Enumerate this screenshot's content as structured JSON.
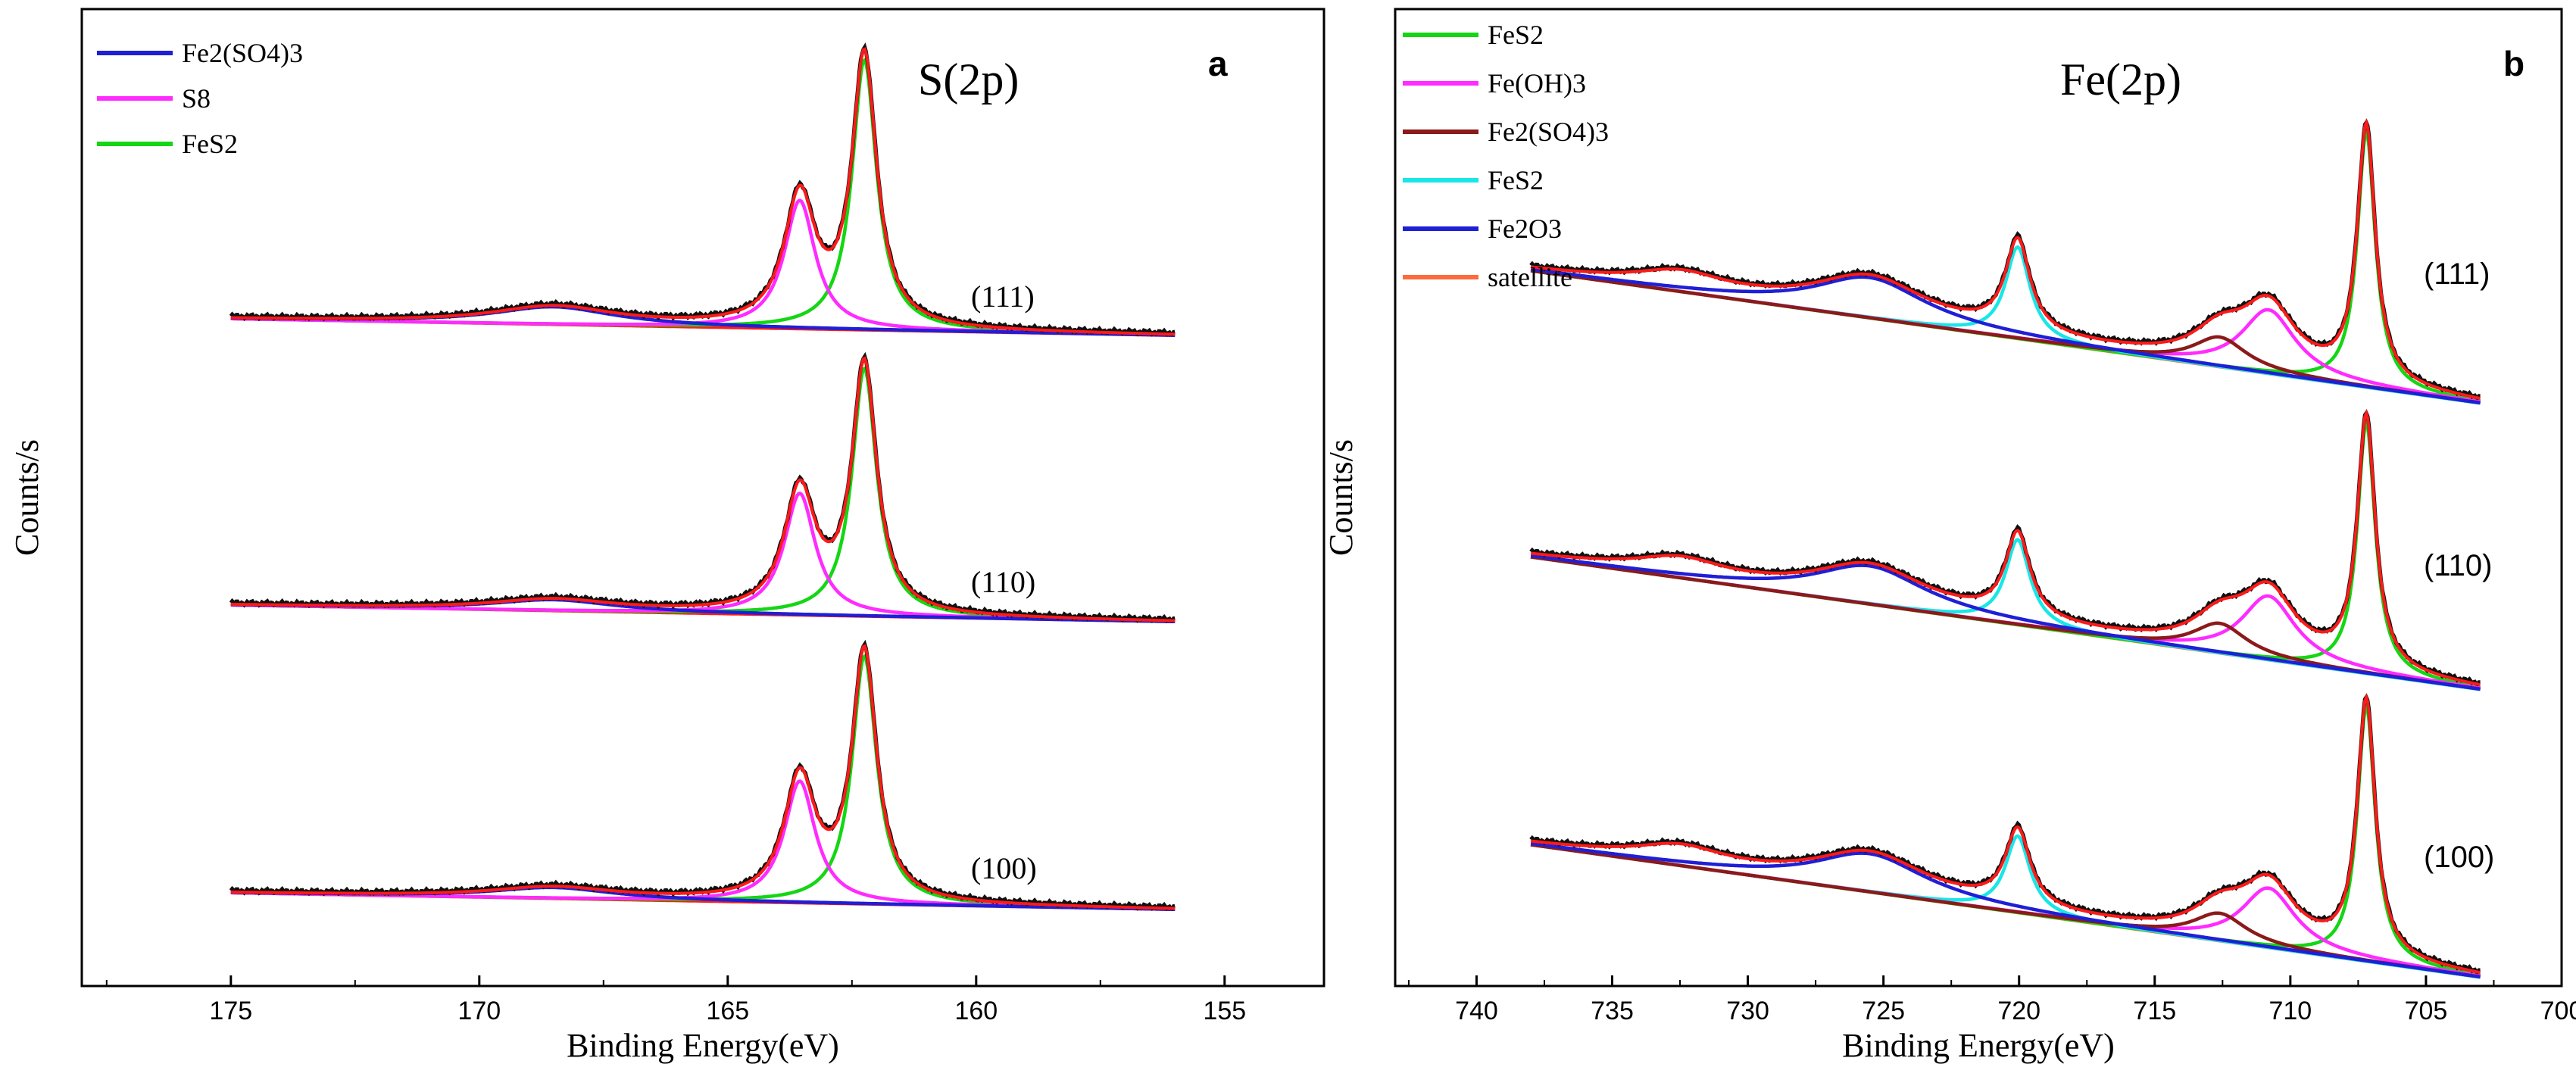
{
  "chart_data": [
    {
      "type": "line",
      "panel_label": "a",
      "title": "S(2p)",
      "xlabel": "Binding Energy(eV)",
      "ylabel": "Counts/s",
      "xlim": [
        178,
        153
      ],
      "x_reversed": true,
      "x_ticks": [
        "175",
        "170",
        "165",
        "160",
        "155"
      ],
      "x_tick_values": [
        175,
        170,
        165,
        160,
        155
      ],
      "grid": false,
      "legend_position": "top-left",
      "legend": [
        {
          "name": "Fe2(SO4)3",
          "color": "#1f1fd6"
        },
        {
          "name": "S8",
          "color": "#ff2bff"
        },
        {
          "name": "FeS2",
          "color": "#14d614"
        }
      ],
      "envelope_color": "#ff1a1a",
      "raw_color": "#111111",
      "baseline_color": "#ff1a1a",
      "x_range_data": [
        175,
        156
      ],
      "spectra": [
        {
          "label": "(111)",
          "offset": 2.0,
          "components": [
            {
              "name": "FeS2",
              "peaks": [
                {
                  "center": 162.25,
                  "height": 1.22,
                  "width": 0.3
                }
              ]
            },
            {
              "name": "S8",
              "peaks": [
                {
                  "center": 163.55,
                  "height": 0.58,
                  "width": 0.38
                }
              ]
            },
            {
              "name": "Fe2(SO4)3",
              "peaks": [
                {
                  "center": 168.5,
                  "height": 0.08,
                  "width": 1.5
                }
              ]
            }
          ]
        },
        {
          "label": "(110)",
          "offset": 1.0,
          "components": [
            {
              "name": "FeS2",
              "peaks": [
                {
                  "center": 162.25,
                  "height": 1.12,
                  "width": 0.3
                }
              ]
            },
            {
              "name": "S8",
              "peaks": [
                {
                  "center": 163.55,
                  "height": 0.55,
                  "width": 0.38
                }
              ]
            },
            {
              "name": "Fe2(SO4)3",
              "peaks": [
                {
                  "center": 168.5,
                  "height": 0.05,
                  "width": 1.5
                }
              ]
            }
          ]
        },
        {
          "label": "(100)",
          "offset": 0.0,
          "components": [
            {
              "name": "FeS2",
              "peaks": [
                {
                  "center": 162.25,
                  "height": 1.12,
                  "width": 0.3
                }
              ]
            },
            {
              "name": "S8",
              "peaks": [
                {
                  "center": 163.55,
                  "height": 0.55,
                  "width": 0.38
                }
              ]
            },
            {
              "name": "Fe2(SO4)3",
              "peaks": [
                {
                  "center": 168.5,
                  "height": 0.05,
                  "width": 1.5
                }
              ]
            }
          ]
        }
      ]
    },
    {
      "type": "line",
      "panel_label": "b",
      "title": "Fe(2p)",
      "xlabel": "Binding Energy(eV)",
      "ylabel": "Counts/s",
      "xlim": [
        743,
        700
      ],
      "x_reversed": true,
      "x_ticks": [
        "740",
        "735",
        "730",
        "725",
        "720",
        "715",
        "710",
        "705",
        "700"
      ],
      "x_tick_values": [
        740,
        735,
        730,
        725,
        720,
        715,
        710,
        705,
        700
      ],
      "grid": false,
      "legend_position": "top-left",
      "legend": [
        {
          "name": "FeS2",
          "color": "#14d614"
        },
        {
          "name": "Fe(OH)3",
          "color": "#ff2bff"
        },
        {
          "name": "Fe2(SO4)3",
          "color": "#8b1a1a"
        },
        {
          "name": "FeS2",
          "color": "#19e6e6"
        },
        {
          "name": "Fe2O3",
          "color": "#1f1fd6"
        },
        {
          "name": "satellite",
          "color": "#ff6a3a"
        }
      ],
      "envelope_color": "#ff1a1a",
      "raw_color": "#111111",
      "x_range_data": [
        738,
        703
      ],
      "spectra": [
        {
          "label": "(111)",
          "offset": 2.0,
          "components": [
            {
              "name": "FeS2",
              "peaks": [
                {
                  "center": 707.2,
                  "height": 1.2,
                  "width": 0.4
                }
              ]
            },
            {
              "name": "FeS2 (2p1/2)",
              "peaks": [
                {
                  "center": 720.05,
                  "height": 0.43,
                  "width": 0.55
                }
              ]
            },
            {
              "name": "Fe(OH)3",
              "peaks": [
                {
                  "center": 710.8,
                  "height": 0.3,
                  "width": 1.2
                }
              ]
            },
            {
              "name": "Fe2(SO4)3",
              "peaks": [
                {
                  "center": 712.6,
                  "height": 0.14,
                  "width": 1.2
                }
              ]
            },
            {
              "name": "Fe2O3",
              "peaks": [
                {
                  "center": 725.5,
                  "height": 0.19,
                  "width": 2.5
                }
              ]
            },
            {
              "name": "satellite",
              "peaks": [
                {
                  "center": 732.5,
                  "height": 0.08,
                  "width": 2.0
                }
              ]
            }
          ]
        },
        {
          "label": "(110)",
          "offset": 1.0,
          "components": [
            {
              "name": "FeS2",
              "peaks": [
                {
                  "center": 707.2,
                  "height": 1.18,
                  "width": 0.4
                }
              ]
            },
            {
              "name": "FeS2 (2p1/2)",
              "peaks": [
                {
                  "center": 720.05,
                  "height": 0.4,
                  "width": 0.55
                }
              ]
            },
            {
              "name": "Fe(OH)3",
              "peaks": [
                {
                  "center": 710.8,
                  "height": 0.3,
                  "width": 1.2
                }
              ]
            },
            {
              "name": "Fe2(SO4)3",
              "peaks": [
                {
                  "center": 712.6,
                  "height": 0.14,
                  "width": 1.2
                }
              ]
            },
            {
              "name": "Fe2O3",
              "peaks": [
                {
                  "center": 725.5,
                  "height": 0.18,
                  "width": 2.5
                }
              ]
            },
            {
              "name": "satellite",
              "peaks": [
                {
                  "center": 732.5,
                  "height": 0.08,
                  "width": 2.0
                }
              ]
            }
          ]
        },
        {
          "label": "(100)",
          "offset": 0.0,
          "components": [
            {
              "name": "FeS2",
              "peaks": [
                {
                  "center": 707.2,
                  "height": 1.2,
                  "width": 0.4
                }
              ]
            },
            {
              "name": "FeS2 (2p1/2)",
              "peaks": [
                {
                  "center": 720.05,
                  "height": 0.36,
                  "width": 0.55
                }
              ]
            },
            {
              "name": "Fe(OH)3",
              "peaks": [
                {
                  "center": 710.8,
                  "height": 0.28,
                  "width": 1.2
                }
              ]
            },
            {
              "name": "Fe2(SO4)3",
              "peaks": [
                {
                  "center": 712.6,
                  "height": 0.13,
                  "width": 1.2
                }
              ]
            },
            {
              "name": "Fe2O3",
              "peaks": [
                {
                  "center": 725.5,
                  "height": 0.18,
                  "width": 2.5
                }
              ]
            },
            {
              "name": "satellite",
              "peaks": [
                {
                  "center": 732.5,
                  "height": 0.08,
                  "width": 2.0
                }
              ]
            }
          ]
        }
      ]
    }
  ]
}
